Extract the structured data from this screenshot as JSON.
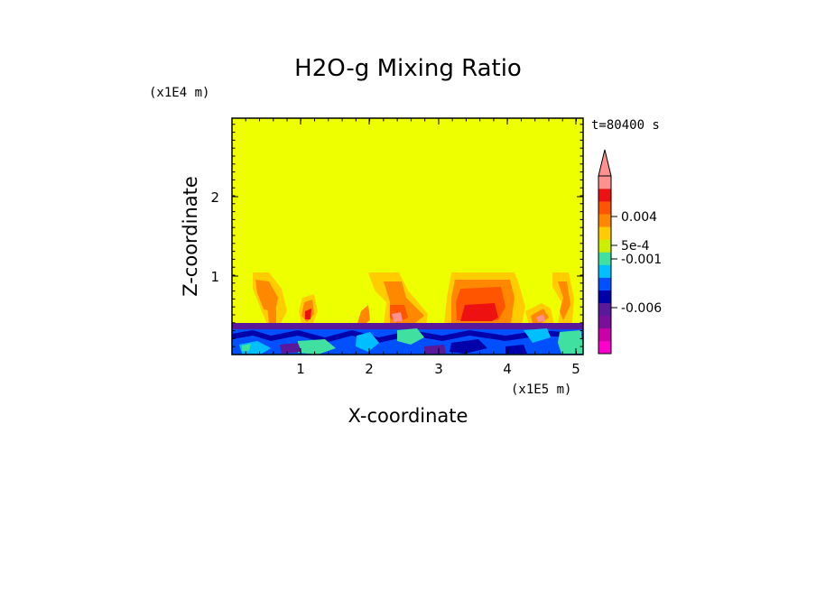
{
  "chart_data": {
    "type": "heatmap",
    "title": "H2O-g Mixing Ratio",
    "time_label": "t=80400 s",
    "xlabel": "X-coordinate",
    "ylabel": "Z-coordinate",
    "x_multiplier": "(x1E5 m)",
    "y_multiplier": "(x1E4 m)",
    "xlim": [
      0,
      5.1
    ],
    "ylim": [
      0,
      3.0
    ],
    "x_ticks": [
      "1",
      "2",
      "3",
      "4",
      "5"
    ],
    "y_ticks": [
      "1",
      "2"
    ],
    "background_level": "near zero (yellow)",
    "colorbar": {
      "labels": [
        "0.004",
        "5e-4",
        "-0.001",
        "-0.006"
      ],
      "colors": [
        "#ff00cc",
        "#cc00aa",
        "#7a0f9a",
        "#5a189a",
        "#0000aa",
        "#0050ff",
        "#00bfff",
        "#40e0a0",
        "#ccee00",
        "#ffcc00",
        "#ff8800",
        "#ff5500",
        "#ee1111",
        "#ff9090"
      ],
      "extend": "max"
    },
    "features": [
      {
        "name": "moist-anomaly plumes",
        "x_range": [
          0.3,
          5.0
        ],
        "z_range": [
          0.4,
          1.05
        ]
      },
      {
        "name": "dry boundary layer",
        "x_range": [
          0,
          5.1
        ],
        "z_range": [
          0,
          0.4
        ]
      }
    ]
  }
}
